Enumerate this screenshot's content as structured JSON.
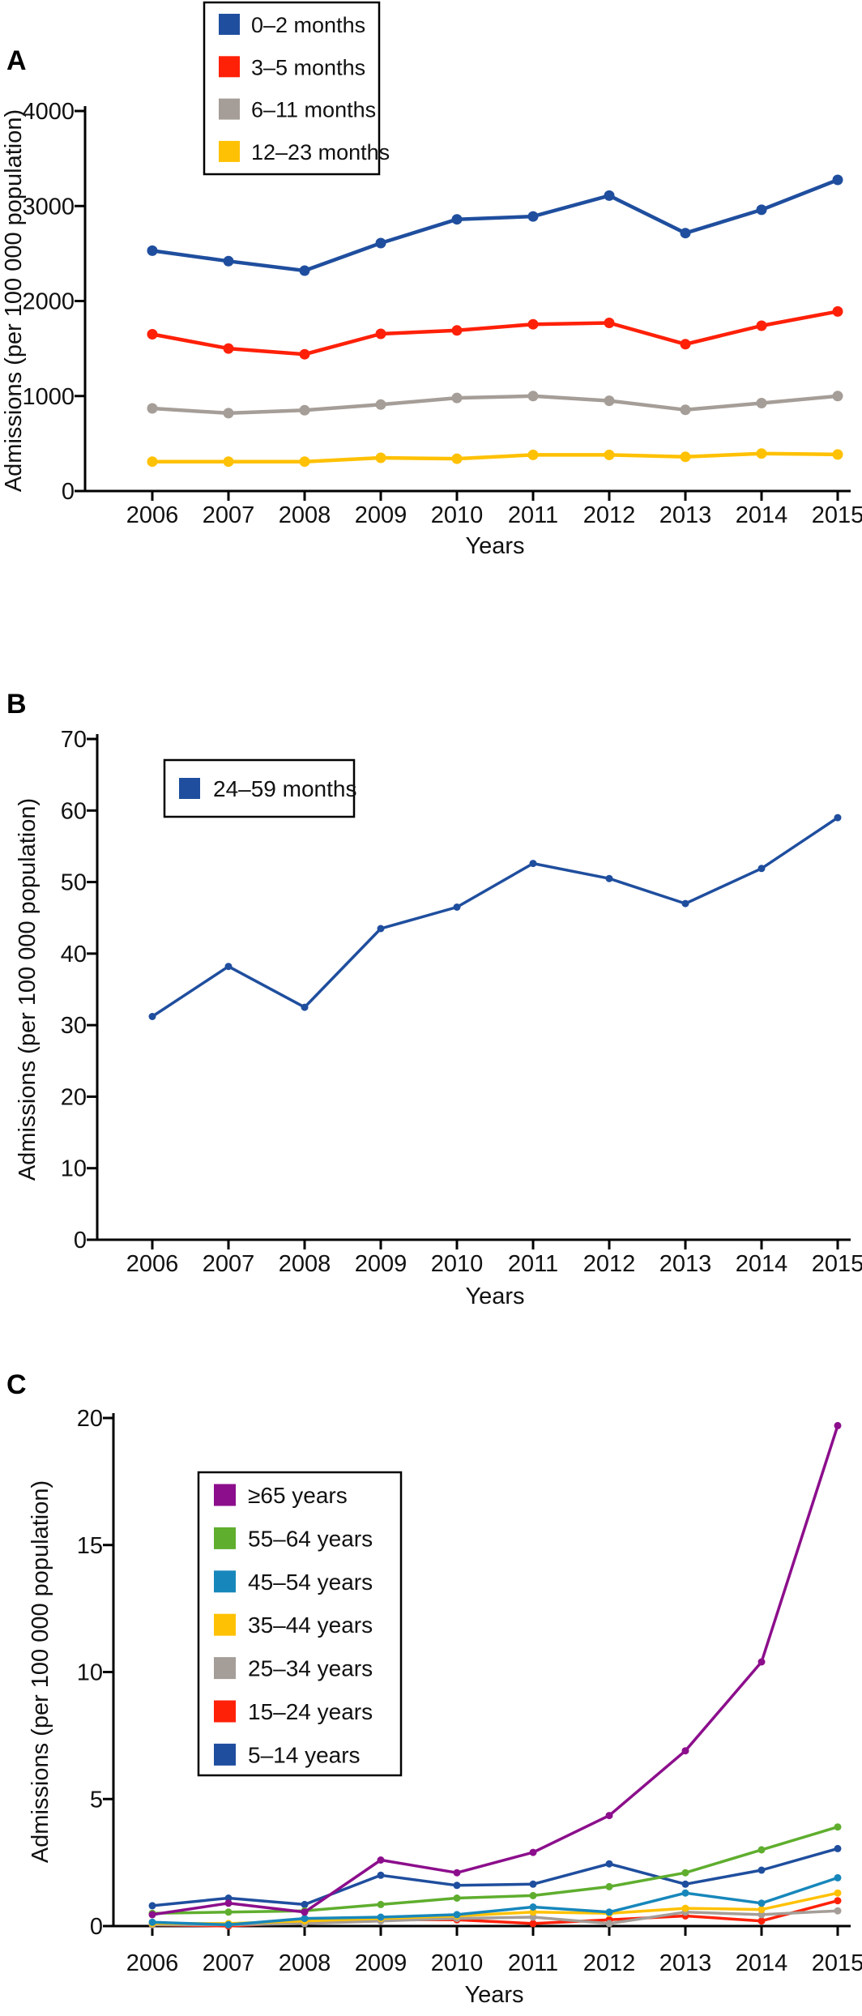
{
  "figure": {
    "background": "#ffffff",
    "axis_color": "#000000",
    "x_axis_label": "Years",
    "y_axis_label": "Admissions (per 100 000 population)"
  },
  "chart_data": [
    {
      "type": "line",
      "panel_label": "A",
      "title": "",
      "x": [
        2006,
        2007,
        2008,
        2009,
        2010,
        2011,
        2012,
        2013,
        2014,
        2015
      ],
      "xlabel": "Years",
      "ylabel": "Admissions (per 100 000 population)",
      "ylim": [
        0,
        4000
      ],
      "yticks": [
        0,
        1000,
        2000,
        3000,
        4000
      ],
      "grid": false,
      "legend_position": "top-left-inside",
      "series": [
        {
          "name": "0–2 months",
          "color": "#1F4E9E",
          "values": [
            2530,
            2420,
            2320,
            2610,
            2860,
            2890,
            3110,
            2715,
            2960,
            3275
          ]
        },
        {
          "name": "3–5 months",
          "color": "#FF2008",
          "values": [
            1650,
            1500,
            1440,
            1655,
            1690,
            1755,
            1770,
            1545,
            1740,
            1890
          ]
        },
        {
          "name": "6–11 months",
          "color": "#A59D97",
          "values": [
            870,
            820,
            850,
            910,
            980,
            1000,
            950,
            855,
            925,
            1000
          ]
        },
        {
          "name": "12–23 months",
          "color": "#FFC103",
          "values": [
            310,
            310,
            310,
            350,
            340,
            380,
            380,
            360,
            395,
            385
          ]
        }
      ]
    },
    {
      "type": "line",
      "panel_label": "B",
      "title": "",
      "x": [
        2006,
        2007,
        2008,
        2009,
        2010,
        2011,
        2012,
        2013,
        2014,
        2015
      ],
      "xlabel": "Years",
      "ylabel": "Admissions (per 100 000 population)",
      "ylim": [
        0,
        70
      ],
      "yticks": [
        0,
        10,
        20,
        30,
        40,
        50,
        60,
        70
      ],
      "grid": false,
      "legend_position": "top-left-inside",
      "series": [
        {
          "name": "24–59 months",
          "color": "#1F4E9E",
          "values": [
            31.2,
            38.2,
            32.5,
            43.5,
            46.5,
            52.6,
            50.5,
            47.0,
            51.9,
            59.0
          ]
        }
      ]
    },
    {
      "type": "line",
      "panel_label": "C",
      "title": "",
      "x": [
        2006,
        2007,
        2008,
        2009,
        2010,
        2011,
        2012,
        2013,
        2014,
        2015
      ],
      "xlabel": "Years",
      "ylabel": "Admissions (per 100 000 population)",
      "ylim": [
        0,
        20
      ],
      "yticks": [
        0,
        5,
        10,
        15,
        20
      ],
      "grid": false,
      "legend_position": "upper-left-inside",
      "series": [
        {
          "name": "≥65 years",
          "color": "#8C0E8C",
          "values": [
            0.45,
            0.9,
            0.55,
            2.6,
            2.1,
            2.9,
            4.35,
            6.9,
            10.4,
            19.7
          ]
        },
        {
          "name": "55–64 years",
          "color": "#5FAE2E",
          "values": [
            0.5,
            0.55,
            0.6,
            0.85,
            1.1,
            1.2,
            1.55,
            2.1,
            3.0,
            3.9
          ]
        },
        {
          "name": "45–54 years",
          "color": "#1787BB",
          "values": [
            0.15,
            0.05,
            0.3,
            0.35,
            0.45,
            0.75,
            0.55,
            1.3,
            0.9,
            1.9
          ]
        },
        {
          "name": "35–44 years",
          "color": "#FFC103",
          "values": [
            0.1,
            0.1,
            0.2,
            0.3,
            0.4,
            0.55,
            0.5,
            0.7,
            0.65,
            1.3
          ]
        },
        {
          "name": "25–34 years",
          "color": "#A59D97",
          "values": [
            0.05,
            0.05,
            0.1,
            0.2,
            0.3,
            0.35,
            0.1,
            0.55,
            0.45,
            0.6
          ]
        },
        {
          "name": "15–24 years",
          "color": "#FF2008",
          "values": [
            0.05,
            0.0,
            0.15,
            0.25,
            0.25,
            0.1,
            0.25,
            0.4,
            0.2,
            1.0
          ]
        },
        {
          "name": "5–14 years",
          "color": "#1F4E9E",
          "values": [
            0.8,
            1.1,
            0.85,
            2.0,
            1.6,
            1.65,
            2.45,
            1.65,
            2.2,
            3.05
          ]
        }
      ]
    }
  ]
}
